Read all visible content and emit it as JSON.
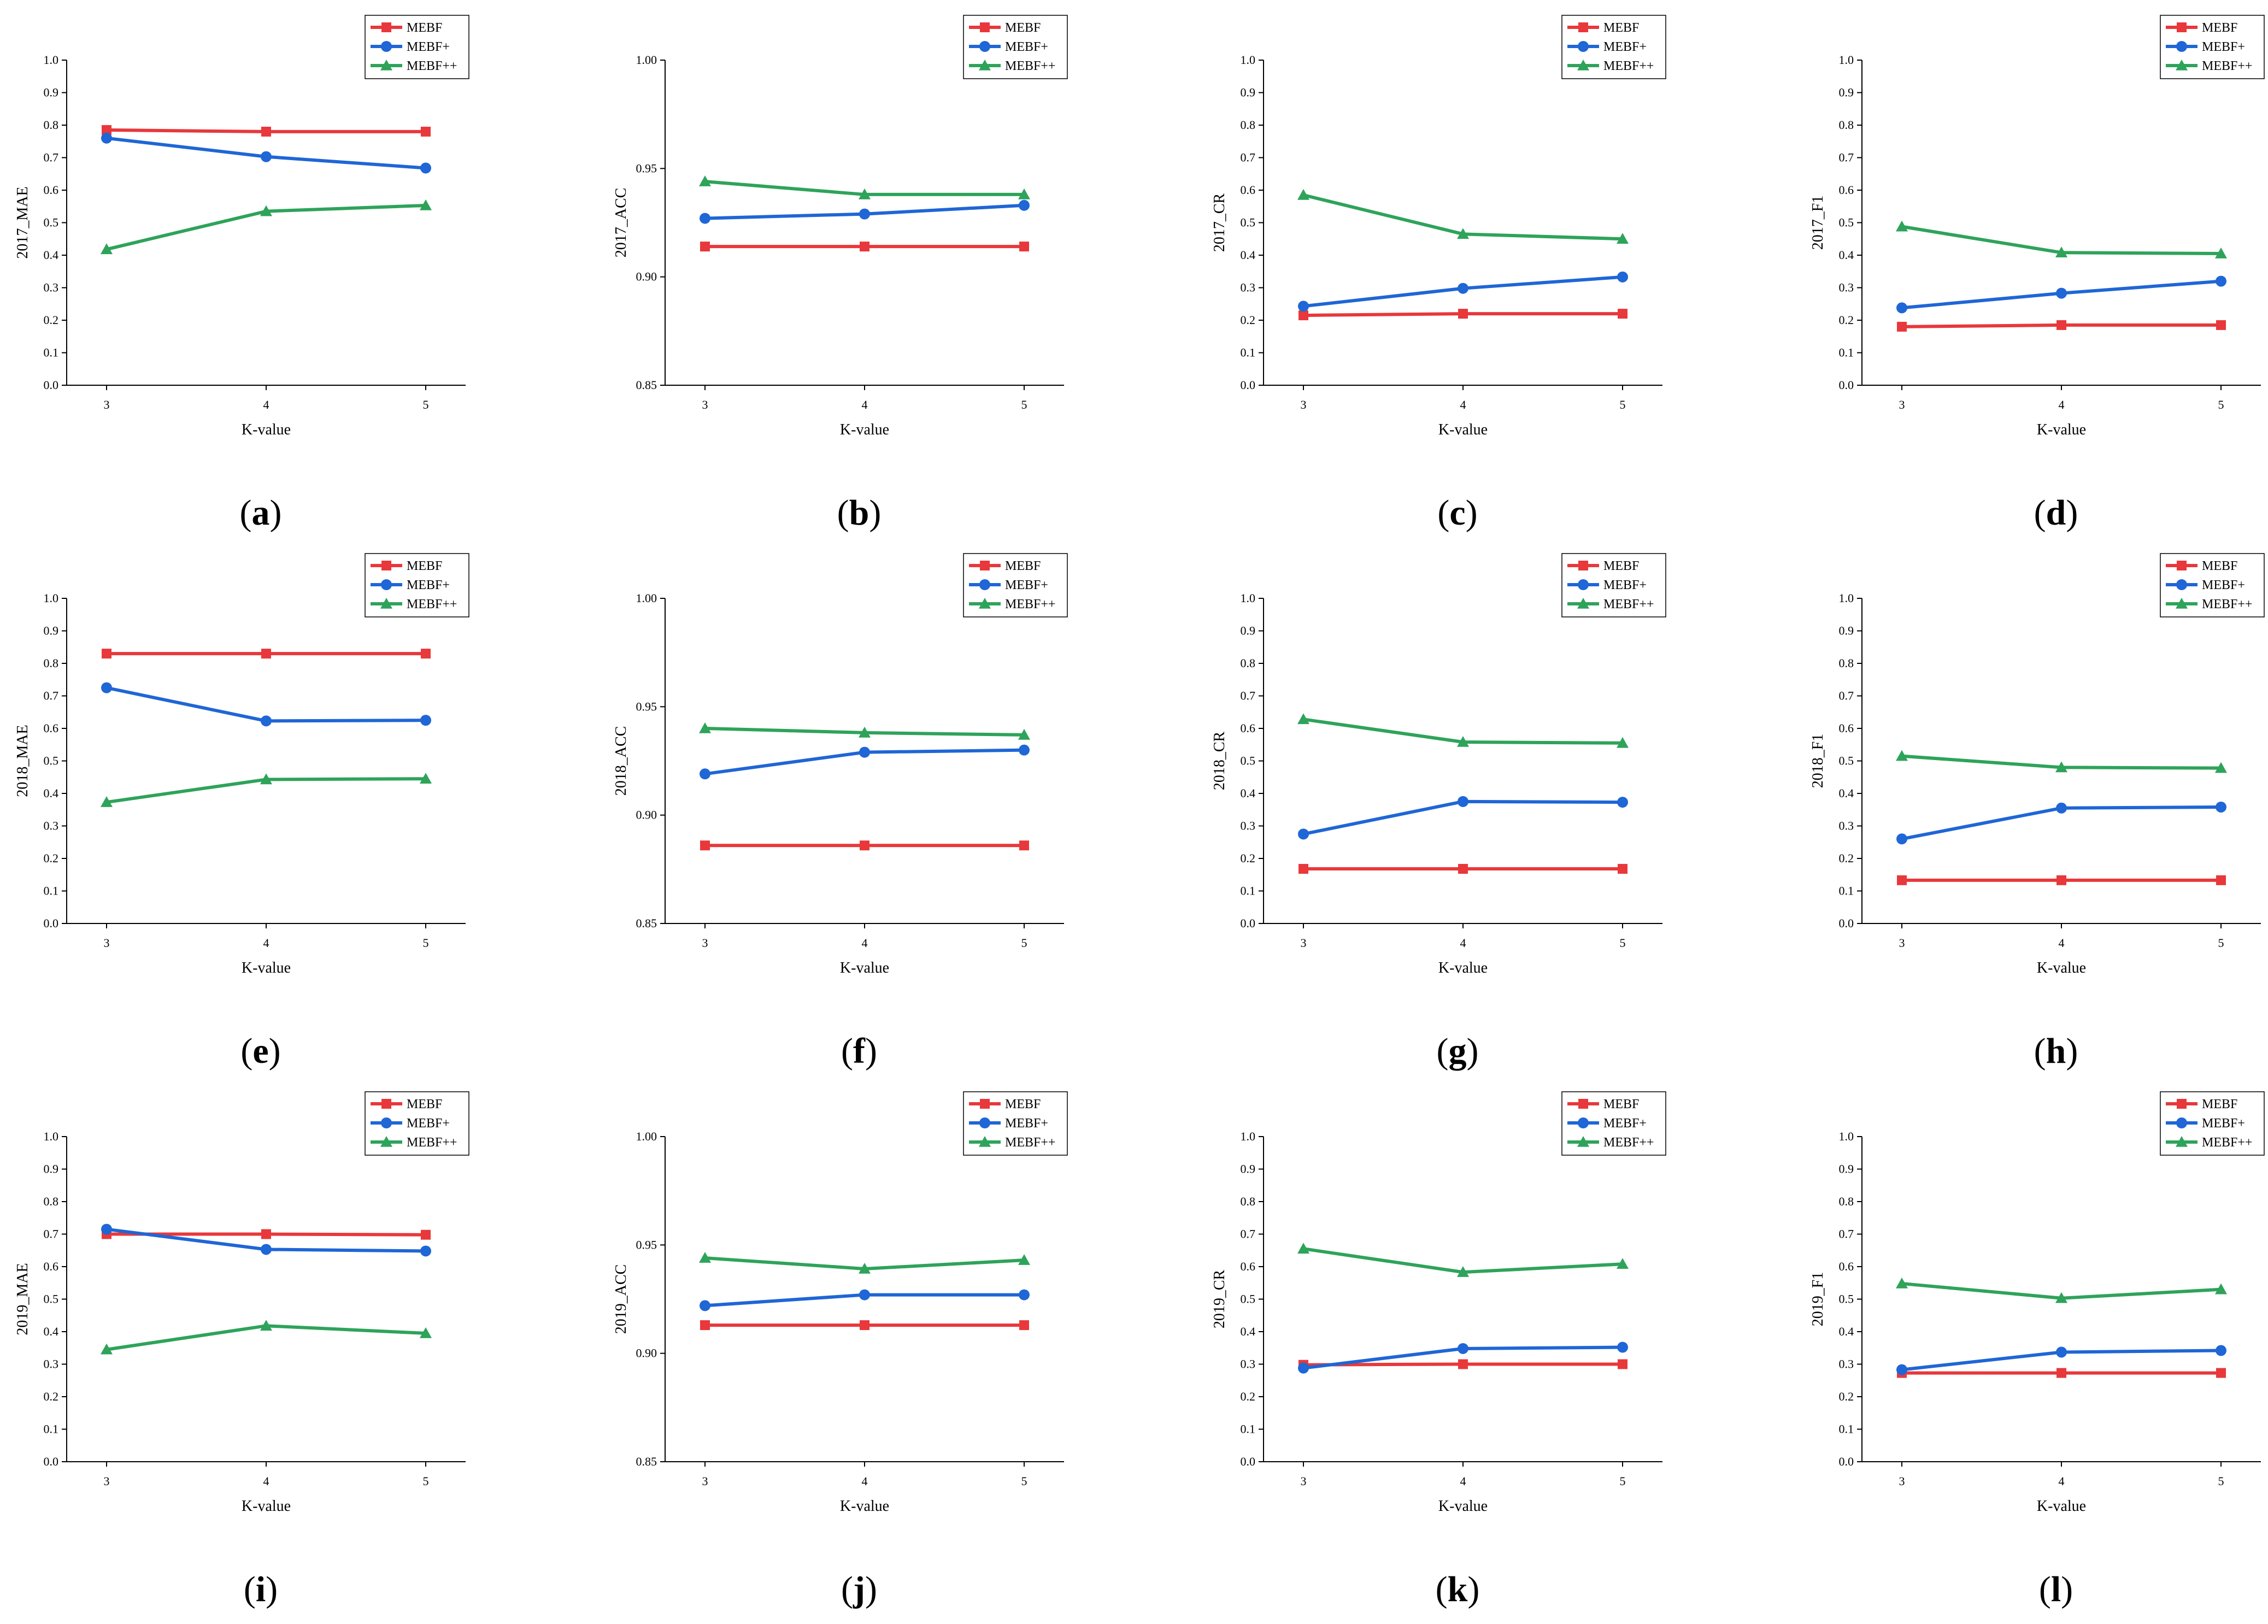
{
  "legend_colors": {
    "MEBF": "#e8383b",
    "MEBF+": "#1f66d6",
    "MEBF++": "#2ea35a"
  },
  "chart_data": [
    {
      "type": "line",
      "caption": "a",
      "ylabel": "2017_MAE",
      "xlabel": "K-value",
      "x": [
        3,
        4,
        5
      ],
      "ylim": [
        0.0,
        1.0
      ],
      "yticks": [
        "0.0",
        "0.1",
        "0.2",
        "0.3",
        "0.4",
        "0.5",
        "0.6",
        "0.7",
        "0.8",
        "0.9",
        "1.0"
      ],
      "legend_position": "top-right",
      "series": [
        {
          "name": "MEBF",
          "marker": "square",
          "values": [
            0.785,
            0.78,
            0.78
          ]
        },
        {
          "name": "MEBF+",
          "marker": "circle",
          "values": [
            0.76,
            0.703,
            0.668
          ]
        },
        {
          "name": "MEBF++",
          "marker": "triangle",
          "values": [
            0.418,
            0.535,
            0.553
          ]
        }
      ]
    },
    {
      "type": "line",
      "caption": "b",
      "ylabel": "2017_ACC",
      "xlabel": "K-value",
      "x": [
        3,
        4,
        5
      ],
      "ylim": [
        0.85,
        1.0
      ],
      "yticks": [
        "0.85",
        "0.90",
        "0.95",
        "1.00"
      ],
      "legend_position": "top-right",
      "series": [
        {
          "name": "MEBF",
          "marker": "square",
          "values": [
            0.914,
            0.914,
            0.914
          ]
        },
        {
          "name": "MEBF+",
          "marker": "circle",
          "values": [
            0.927,
            0.929,
            0.933
          ]
        },
        {
          "name": "MEBF++",
          "marker": "triangle",
          "values": [
            0.944,
            0.938,
            0.938
          ]
        }
      ]
    },
    {
      "type": "line",
      "caption": "c",
      "ylabel": "2017_CR",
      "xlabel": "K-value",
      "x": [
        3,
        4,
        5
      ],
      "ylim": [
        0.0,
        1.0
      ],
      "yticks": [
        "0.0",
        "0.1",
        "0.2",
        "0.3",
        "0.4",
        "0.5",
        "0.6",
        "0.7",
        "0.8",
        "0.9",
        "1.0"
      ],
      "legend_position": "top-right",
      "series": [
        {
          "name": "MEBF",
          "marker": "square",
          "values": [
            0.215,
            0.22,
            0.22
          ]
        },
        {
          "name": "MEBF+",
          "marker": "circle",
          "values": [
            0.243,
            0.298,
            0.333
          ]
        },
        {
          "name": "MEBF++",
          "marker": "triangle",
          "values": [
            0.585,
            0.465,
            0.45
          ]
        }
      ]
    },
    {
      "type": "line",
      "caption": "d",
      "ylabel": "2017_F1",
      "xlabel": "K-value",
      "x": [
        3,
        4,
        5
      ],
      "ylim": [
        0.0,
        1.0
      ],
      "yticks": [
        "0.0",
        "0.1",
        "0.2",
        "0.3",
        "0.4",
        "0.5",
        "0.6",
        "0.7",
        "0.8",
        "0.9",
        "1.0"
      ],
      "legend_position": "top-right",
      "series": [
        {
          "name": "MEBF",
          "marker": "square",
          "values": [
            0.18,
            0.185,
            0.185
          ]
        },
        {
          "name": "MEBF+",
          "marker": "circle",
          "values": [
            0.238,
            0.283,
            0.32
          ]
        },
        {
          "name": "MEBF++",
          "marker": "triangle",
          "values": [
            0.488,
            0.408,
            0.405
          ]
        }
      ]
    },
    {
      "type": "line",
      "caption": "e",
      "ylabel": "2018_MAE",
      "xlabel": "K-value",
      "x": [
        3,
        4,
        5
      ],
      "ylim": [
        0.0,
        1.0
      ],
      "yticks": [
        "0.0",
        "0.1",
        "0.2",
        "0.3",
        "0.4",
        "0.5",
        "0.6",
        "0.7",
        "0.8",
        "0.9",
        "1.0"
      ],
      "legend_position": "top-right",
      "series": [
        {
          "name": "MEBF",
          "marker": "square",
          "values": [
            0.83,
            0.83,
            0.83
          ]
        },
        {
          "name": "MEBF+",
          "marker": "circle",
          "values": [
            0.725,
            0.623,
            0.625
          ]
        },
        {
          "name": "MEBF++",
          "marker": "triangle",
          "values": [
            0.373,
            0.443,
            0.445
          ]
        }
      ]
    },
    {
      "type": "line",
      "caption": "f",
      "ylabel": "2018_ACC",
      "xlabel": "K-value",
      "x": [
        3,
        4,
        5
      ],
      "ylim": [
        0.85,
        1.0
      ],
      "yticks": [
        "0.85",
        "0.90",
        "0.95",
        "1.00"
      ],
      "legend_position": "top-right",
      "series": [
        {
          "name": "MEBF",
          "marker": "square",
          "values": [
            0.886,
            0.886,
            0.886
          ]
        },
        {
          "name": "MEBF+",
          "marker": "circle",
          "values": [
            0.919,
            0.929,
            0.93
          ]
        },
        {
          "name": "MEBF++",
          "marker": "triangle",
          "values": [
            0.94,
            0.938,
            0.937
          ]
        }
      ]
    },
    {
      "type": "line",
      "caption": "g",
      "ylabel": "2018_CR",
      "xlabel": "K-value",
      "x": [
        3,
        4,
        5
      ],
      "ylim": [
        0.0,
        1.0
      ],
      "yticks": [
        "0.0",
        "0.1",
        "0.2",
        "0.3",
        "0.4",
        "0.5",
        "0.6",
        "0.7",
        "0.8",
        "0.9",
        "1.0"
      ],
      "legend_position": "top-right",
      "series": [
        {
          "name": "MEBF",
          "marker": "square",
          "values": [
            0.168,
            0.168,
            0.168
          ]
        },
        {
          "name": "MEBF+",
          "marker": "circle",
          "values": [
            0.275,
            0.375,
            0.373
          ]
        },
        {
          "name": "MEBF++",
          "marker": "triangle",
          "values": [
            0.628,
            0.558,
            0.555
          ]
        }
      ]
    },
    {
      "type": "line",
      "caption": "h",
      "ylabel": "2018_F1",
      "xlabel": "K-value",
      "x": [
        3,
        4,
        5
      ],
      "ylim": [
        0.0,
        1.0
      ],
      "yticks": [
        "0.0",
        "0.1",
        "0.2",
        "0.3",
        "0.4",
        "0.5",
        "0.6",
        "0.7",
        "0.8",
        "0.9",
        "1.0"
      ],
      "legend_position": "top-right",
      "series": [
        {
          "name": "MEBF",
          "marker": "square",
          "values": [
            0.133,
            0.133,
            0.133
          ]
        },
        {
          "name": "MEBF+",
          "marker": "circle",
          "values": [
            0.26,
            0.355,
            0.358
          ]
        },
        {
          "name": "MEBF++",
          "marker": "triangle",
          "values": [
            0.515,
            0.48,
            0.478
          ]
        }
      ]
    },
    {
      "type": "line",
      "caption": "i",
      "ylabel": "2019_MAE",
      "xlabel": "K-value",
      "x": [
        3,
        4,
        5
      ],
      "ylim": [
        0.0,
        1.0
      ],
      "yticks": [
        "0.0",
        "0.1",
        "0.2",
        "0.3",
        "0.4",
        "0.5",
        "0.6",
        "0.7",
        "0.8",
        "0.9",
        "1.0"
      ],
      "legend_position": "top-right",
      "series": [
        {
          "name": "MEBF",
          "marker": "square",
          "values": [
            0.7,
            0.7,
            0.698
          ]
        },
        {
          "name": "MEBF+",
          "marker": "circle",
          "values": [
            0.715,
            0.653,
            0.648
          ]
        },
        {
          "name": "MEBF++",
          "marker": "triangle",
          "values": [
            0.345,
            0.418,
            0.395
          ]
        }
      ]
    },
    {
      "type": "line",
      "caption": "j",
      "ylabel": "2019_ACC",
      "xlabel": "K-value",
      "x": [
        3,
        4,
        5
      ],
      "ylim": [
        0.85,
        1.0
      ],
      "yticks": [
        "0.85",
        "0.90",
        "0.95",
        "1.00"
      ],
      "legend_position": "top-right",
      "series": [
        {
          "name": "MEBF",
          "marker": "square",
          "values": [
            0.913,
            0.913,
            0.913
          ]
        },
        {
          "name": "MEBF+",
          "marker": "circle",
          "values": [
            0.922,
            0.927,
            0.927
          ]
        },
        {
          "name": "MEBF++",
          "marker": "triangle",
          "values": [
            0.944,
            0.939,
            0.943
          ]
        }
      ]
    },
    {
      "type": "line",
      "caption": "k",
      "ylabel": "2019_CR",
      "xlabel": "K-value",
      "x": [
        3,
        4,
        5
      ],
      "ylim": [
        0.0,
        1.0
      ],
      "yticks": [
        "0.0",
        "0.1",
        "0.2",
        "0.3",
        "0.4",
        "0.5",
        "0.6",
        "0.7",
        "0.8",
        "0.9",
        "1.0"
      ],
      "legend_position": "top-right",
      "series": [
        {
          "name": "MEBF",
          "marker": "square",
          "values": [
            0.298,
            0.3,
            0.3
          ]
        },
        {
          "name": "MEBF+",
          "marker": "circle",
          "values": [
            0.288,
            0.348,
            0.352
          ]
        },
        {
          "name": "MEBF++",
          "marker": "triangle",
          "values": [
            0.655,
            0.583,
            0.608
          ]
        }
      ]
    },
    {
      "type": "line",
      "caption": "l",
      "ylabel": "2019_F1",
      "xlabel": "K-value",
      "x": [
        3,
        4,
        5
      ],
      "ylim": [
        0.0,
        1.0
      ],
      "yticks": [
        "0.0",
        "0.1",
        "0.2",
        "0.3",
        "0.4",
        "0.5",
        "0.6",
        "0.7",
        "0.8",
        "0.9",
        "1.0"
      ],
      "legend_position": "top-right",
      "series": [
        {
          "name": "MEBF",
          "marker": "square",
          "values": [
            0.273,
            0.273,
            0.273
          ]
        },
        {
          "name": "MEBF+",
          "marker": "circle",
          "values": [
            0.283,
            0.337,
            0.342
          ]
        },
        {
          "name": "MEBF++",
          "marker": "triangle",
          "values": [
            0.548,
            0.503,
            0.53
          ]
        }
      ]
    }
  ]
}
